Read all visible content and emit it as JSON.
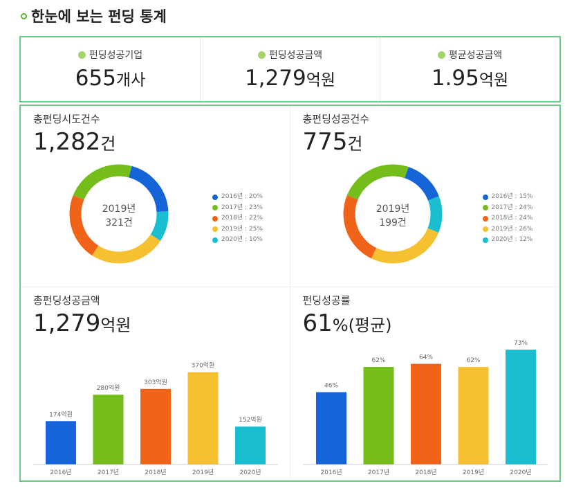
{
  "title": "한눈에 보는 펀딩 통계",
  "stats": [
    {
      "label": "펀딩성공기업",
      "value": "655",
      "unit": "개사",
      "icon": "building-icon"
    },
    {
      "label": "펀딩성공금액",
      "value": "1,279",
      "unit": "억원",
      "icon": "coin-icon"
    },
    {
      "label": "평균성공금액",
      "value": "1.95",
      "unit": "억원",
      "icon": "coin-icon"
    }
  ],
  "colors": {
    "2016": "#1565d8",
    "2017": "#74bd1a",
    "2018": "#f0641a",
    "2019": "#f6c130",
    "2020": "#19bed1",
    "border": "#6ccb8a"
  },
  "chart_data": [
    {
      "type": "pie",
      "title": "총펀딩시도건수",
      "total": "1,282",
      "unit": "건",
      "center": [
        "2019년",
        "321건"
      ],
      "categories": [
        "2016년",
        "2017년",
        "2018년",
        "2019년",
        "2020년"
      ],
      "values": [
        20,
        23,
        22,
        25,
        10
      ],
      "legend": [
        "2016년 : 20%",
        "2017년 : 23%",
        "2018년 : 22%",
        "2019년 : 25%",
        "2020년 : 10%"
      ]
    },
    {
      "type": "pie",
      "title": "총펀딩성공건수",
      "total": "775",
      "unit": "건",
      "center": [
        "2019년",
        "199건"
      ],
      "categories": [
        "2016년",
        "2017년",
        "2018년",
        "2019년",
        "2020년"
      ],
      "values": [
        15,
        24,
        24,
        26,
        12
      ],
      "legend": [
        "2016년 : 15%",
        "2017년 : 24%",
        "2018년 : 24%",
        "2019년 : 26%",
        "2020년 : 12%"
      ]
    },
    {
      "type": "bar",
      "title": "총펀딩성공금액",
      "total": "1,279",
      "unit": "억원",
      "categories": [
        "2016년",
        "2017년",
        "2018년",
        "2019년",
        "2020년"
      ],
      "values": [
        174,
        280,
        303,
        370,
        152
      ],
      "labels": [
        "174억원",
        "280억원",
        "303억원",
        "370억원",
        "152억원"
      ],
      "ylim": [
        0,
        400
      ]
    },
    {
      "type": "bar",
      "title": "펀딩성공률",
      "total": "61",
      "unit": "%(평균)",
      "categories": [
        "2016년",
        "2017년",
        "2018년",
        "2019년",
        "2020년"
      ],
      "values": [
        46,
        62,
        64,
        62,
        73
      ],
      "labels": [
        "46%",
        "62%",
        "64%",
        "62%",
        "73%"
      ],
      "ylim": [
        0,
        85
      ]
    }
  ]
}
